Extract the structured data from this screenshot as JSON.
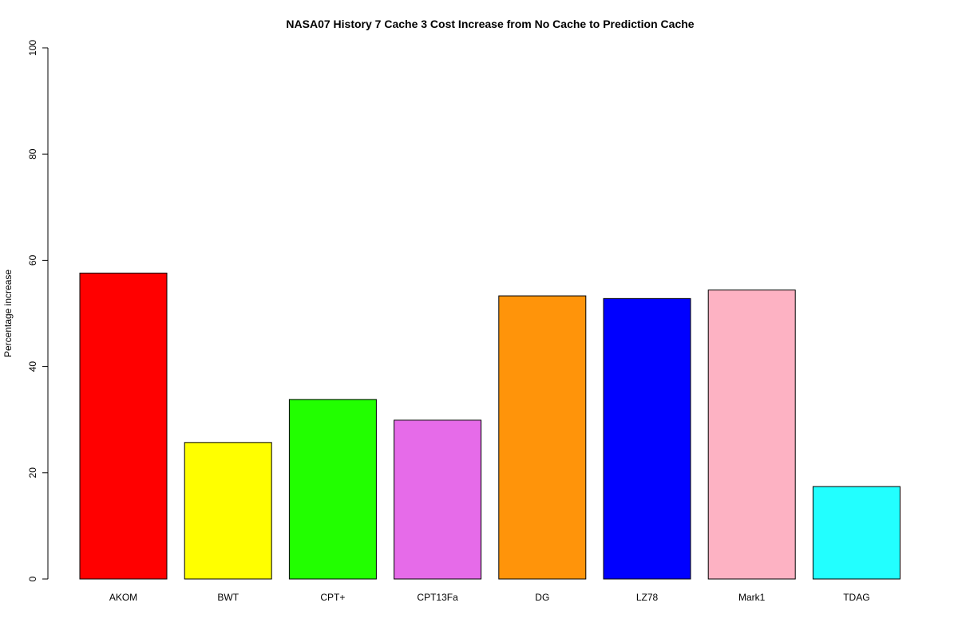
{
  "chart_data": {
    "type": "bar",
    "title": "NASA07  History  7  Cache  3  Cost Increase from No Cache to Prediction Cache",
    "xlabel": "",
    "ylabel": "Percentage increase",
    "ylim": [
      0,
      100
    ],
    "yticks": [
      0,
      20,
      40,
      60,
      80,
      100
    ],
    "grid": false,
    "categories": [
      "AKOM",
      "BWT",
      "CPT+",
      "CPT13Fa",
      "DG",
      "LZ78",
      "Mark1",
      "TDAG"
    ],
    "values": [
      57.6,
      25.7,
      33.8,
      29.9,
      53.3,
      52.8,
      54.4,
      17.4
    ],
    "colors": [
      "#ff0000",
      "#ffff00",
      "#22ff00",
      "#e66be9",
      "#ff940a",
      "#0000ff",
      "#fdb2c3",
      "#22ffff"
    ]
  }
}
